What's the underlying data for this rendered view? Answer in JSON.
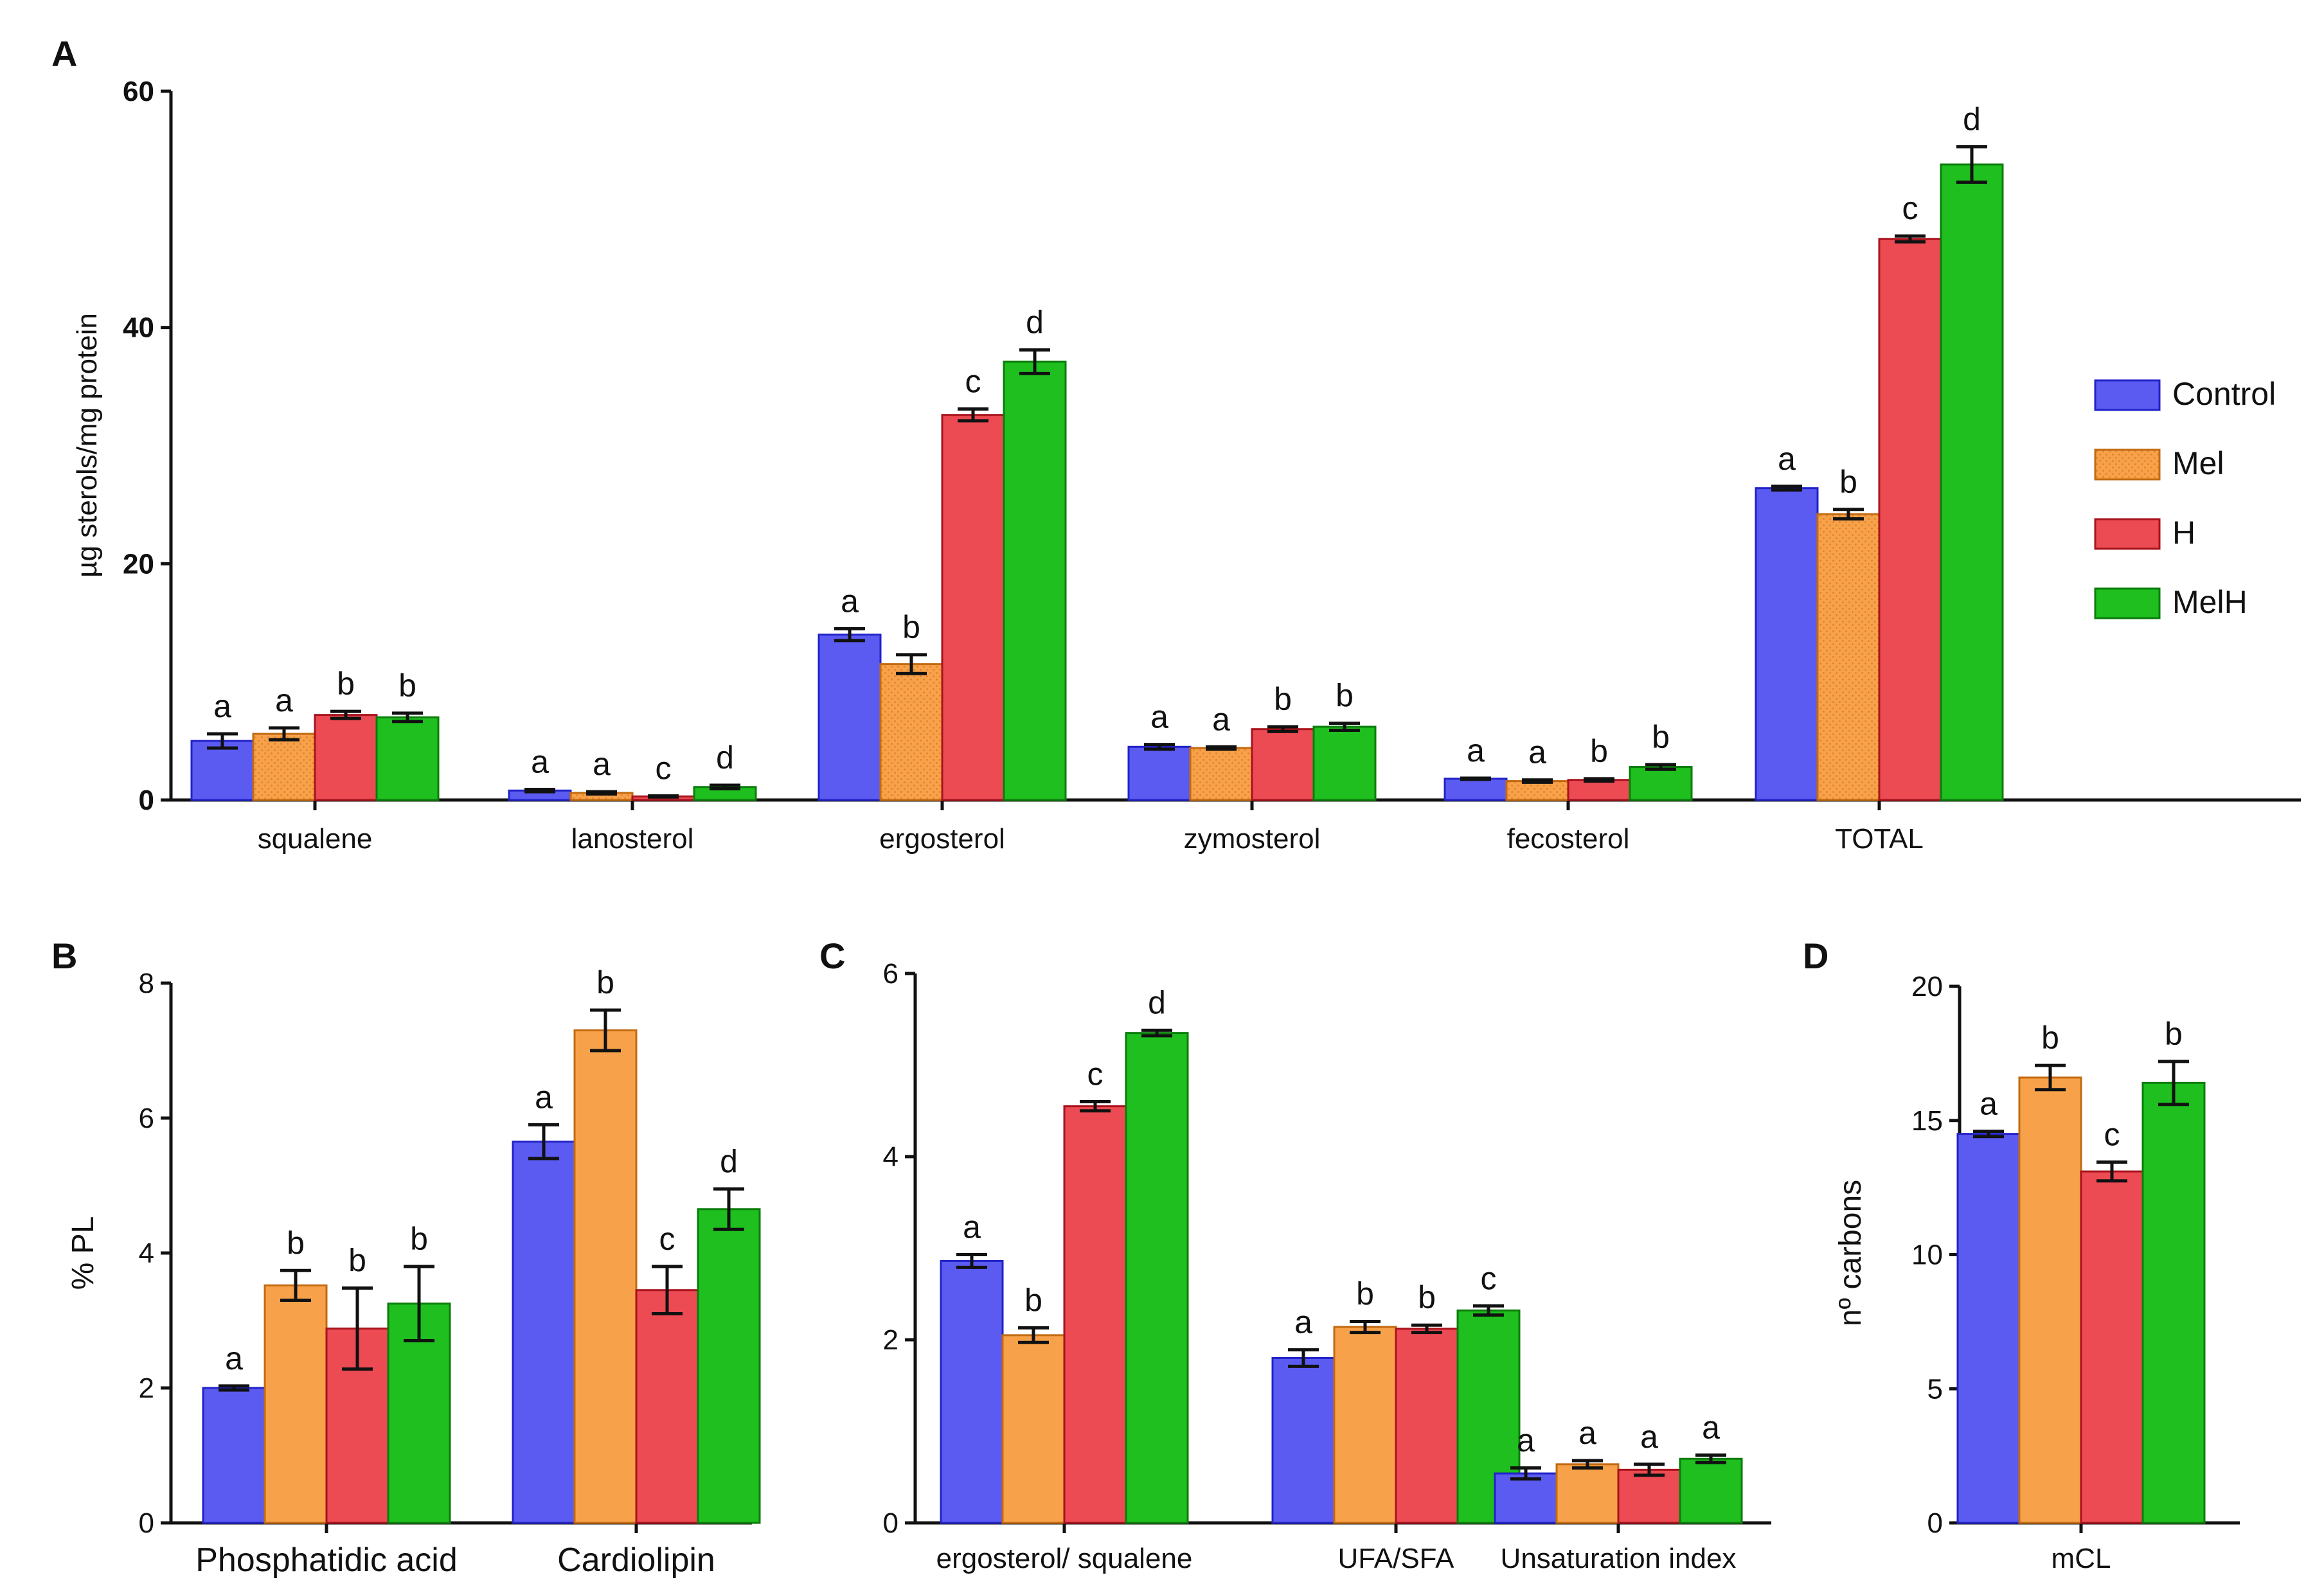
{
  "legend": [
    {
      "label": "Control",
      "color": "#5b5bf2",
      "edge": "#2222c8",
      "pattern": "solid"
    },
    {
      "label": "Mel",
      "color": "#f7a24a",
      "edge": "#c26a10",
      "pattern": "dotted"
    },
    {
      "label": "H",
      "color": "#ec4b54",
      "edge": "#a8121c",
      "pattern": "solid"
    },
    {
      "label": "MelH",
      "color": "#1ebf1e",
      "edge": "#0b7d0b",
      "pattern": "solid"
    }
  ],
  "chart_data": [
    {
      "panel": "A",
      "type": "bar",
      "ylabel": "µg sterols/mg protein",
      "ylim": [
        0,
        60
      ],
      "yticks": [
        "0",
        "20",
        "40",
        "60"
      ],
      "categories": [
        "squalene",
        "lanosterol",
        "ergosterol",
        "zymosterol",
        "fecosterol",
        "TOTAL"
      ],
      "series": [
        {
          "name": "Control",
          "values": [
            5.0,
            0.8,
            14.0,
            4.5,
            1.8,
            26.4
          ],
          "errors": [
            0.6,
            0.1,
            0.5,
            0.2,
            0.05,
            0.15
          ],
          "letters": [
            "a",
            "a",
            "a",
            "a",
            "a",
            "a"
          ]
        },
        {
          "name": "Mel",
          "values": [
            5.6,
            0.6,
            11.5,
            4.4,
            1.6,
            24.2
          ],
          "errors": [
            0.5,
            0.1,
            0.8,
            0.1,
            0.1,
            0.4
          ],
          "letters": [
            "a",
            "a",
            "b",
            "a",
            "a",
            "b"
          ]
        },
        {
          "name": "H",
          "values": [
            7.2,
            0.3,
            32.6,
            6.0,
            1.7,
            47.5
          ],
          "errors": [
            0.3,
            0.05,
            0.5,
            0.2,
            0.1,
            0.25
          ],
          "letters": [
            "b",
            "c",
            "c",
            "b",
            "b",
            "c"
          ]
        },
        {
          "name": "MelH",
          "values": [
            7.0,
            1.1,
            37.1,
            6.2,
            2.8,
            53.8
          ],
          "errors": [
            0.35,
            0.15,
            1.0,
            0.3,
            0.2,
            1.5
          ],
          "letters": [
            "b",
            "d",
            "d",
            "b",
            "b",
            "d"
          ]
        }
      ]
    },
    {
      "panel": "B",
      "type": "bar",
      "ylabel": "% PL",
      "ylim": [
        0,
        8
      ],
      "yticks": [
        "0",
        "2",
        "4",
        "6",
        "8"
      ],
      "categories": [
        "Phosphatidic acid",
        "Cardiolipin"
      ],
      "series": [
        {
          "name": "Control",
          "values": [
            2.0,
            5.65
          ],
          "errors": [
            0.03,
            0.25
          ],
          "letters": [
            "a",
            "a"
          ]
        },
        {
          "name": "Mel",
          "values": [
            3.52,
            7.3
          ],
          "errors": [
            0.22,
            0.3
          ],
          "letters": [
            "b",
            "b"
          ]
        },
        {
          "name": "H",
          "values": [
            2.88,
            3.45
          ],
          "errors": [
            0.6,
            0.35
          ],
          "letters": [
            "b",
            "c"
          ]
        },
        {
          "name": "MelH",
          "values": [
            3.25,
            4.65
          ],
          "errors": [
            0.55,
            0.3
          ],
          "letters": [
            "b",
            "d"
          ]
        }
      ]
    },
    {
      "panel": "C",
      "type": "bar",
      "ylabel": "",
      "ylim": [
        0,
        6
      ],
      "yticks": [
        "0",
        "2",
        "4",
        "6"
      ],
      "categories": [
        "ergosterol/ squalene",
        "UFA/SFA",
        "Unsaturation index"
      ],
      "series": [
        {
          "name": "Control",
          "values": [
            2.86,
            1.8,
            0.54
          ],
          "errors": [
            0.07,
            0.09,
            0.06
          ],
          "letters": [
            "a",
            "a",
            "a"
          ]
        },
        {
          "name": "Mel",
          "values": [
            2.05,
            2.14,
            0.64
          ],
          "errors": [
            0.08,
            0.06,
            0.04
          ],
          "letters": [
            "b",
            "b",
            "a"
          ]
        },
        {
          "name": "H",
          "values": [
            4.55,
            2.12,
            0.58
          ],
          "errors": [
            0.05,
            0.04,
            0.06
          ],
          "letters": [
            "c",
            "b",
            "a"
          ]
        },
        {
          "name": "MelH",
          "values": [
            5.35,
            2.32,
            0.7
          ],
          "errors": [
            0.03,
            0.05,
            0.04
          ],
          "letters": [
            "d",
            "c",
            "a"
          ]
        }
      ]
    },
    {
      "panel": "D",
      "type": "bar",
      "ylabel": "nº carbons",
      "ylim": [
        0,
        20
      ],
      "yticks": [
        "0",
        "5",
        "10",
        "15",
        "20"
      ],
      "categories": [
        "mCL"
      ],
      "series": [
        {
          "name": "Control",
          "values": [
            14.5
          ],
          "errors": [
            0.1
          ],
          "letters": [
            "a"
          ]
        },
        {
          "name": "Mel",
          "values": [
            16.6
          ],
          "errors": [
            0.45
          ],
          "letters": [
            "b"
          ]
        },
        {
          "name": "H",
          "values": [
            13.1
          ],
          "errors": [
            0.35
          ],
          "letters": [
            "c"
          ]
        },
        {
          "name": "MelH",
          "values": [
            16.4
          ],
          "errors": [
            0.8
          ],
          "letters": [
            "b"
          ]
        }
      ]
    }
  ]
}
